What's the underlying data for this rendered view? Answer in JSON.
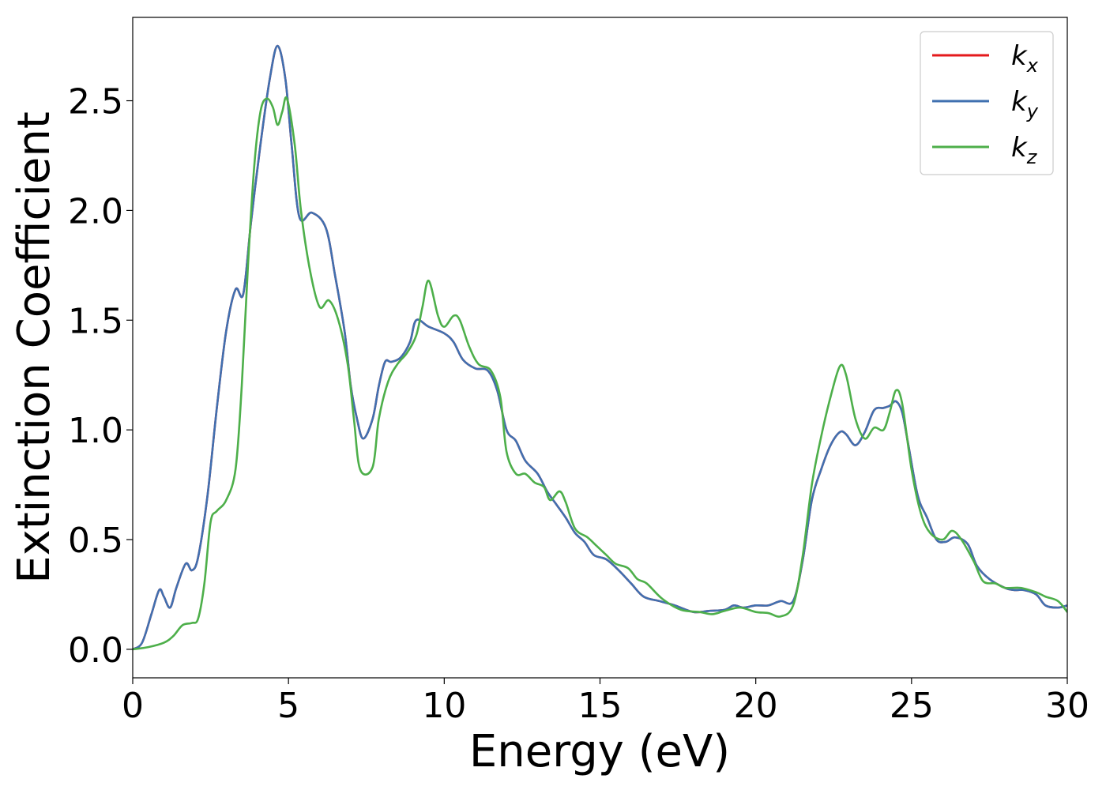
{
  "chart_data": {
    "type": "line",
    "title": "",
    "xlabel": "Energy (eV)",
    "ylabel": "Extinction Coefficient",
    "xlim": [
      0,
      30
    ],
    "ylim": [
      -0.13,
      2.88
    ],
    "xticks": [
      0,
      5,
      10,
      15,
      20,
      25,
      30
    ],
    "xtick_labels": [
      "0",
      "5",
      "10",
      "15",
      "20",
      "25",
      "30"
    ],
    "yticks": [
      0.0,
      0.5,
      1.0,
      1.5,
      2.0,
      2.5
    ],
    "ytick_labels": [
      "0.0",
      "0.5",
      "1.0",
      "1.5",
      "2.0",
      "2.5"
    ],
    "grid": false,
    "legend_position": "top-right",
    "series": [
      {
        "name": "k",
        "sub": "x",
        "color": "#e41a1c",
        "points": [
          [
            0,
            0
          ],
          [
            0.3,
            0.03
          ],
          [
            0.6,
            0.16
          ],
          [
            0.85,
            0.27
          ],
          [
            1.0,
            0.24
          ],
          [
            1.2,
            0.19
          ],
          [
            1.4,
            0.28
          ],
          [
            1.7,
            0.39
          ],
          [
            1.9,
            0.36
          ],
          [
            2.1,
            0.42
          ],
          [
            2.4,
            0.7
          ],
          [
            2.7,
            1.1
          ],
          [
            3.0,
            1.45
          ],
          [
            3.3,
            1.64
          ],
          [
            3.55,
            1.62
          ],
          [
            3.8,
            1.95
          ],
          [
            4.1,
            2.3
          ],
          [
            4.4,
            2.6
          ],
          [
            4.65,
            2.75
          ],
          [
            4.9,
            2.6
          ],
          [
            5.1,
            2.3
          ],
          [
            5.35,
            1.97
          ],
          [
            5.75,
            1.99
          ],
          [
            6.2,
            1.92
          ],
          [
            6.5,
            1.7
          ],
          [
            6.8,
            1.45
          ],
          [
            7.0,
            1.2
          ],
          [
            7.2,
            1.05
          ],
          [
            7.4,
            0.96
          ],
          [
            7.7,
            1.05
          ],
          [
            7.9,
            1.2
          ],
          [
            8.1,
            1.31
          ],
          [
            8.3,
            1.31
          ],
          [
            8.6,
            1.33
          ],
          [
            8.9,
            1.4
          ],
          [
            9.1,
            1.5
          ],
          [
            9.5,
            1.47
          ],
          [
            10.0,
            1.44
          ],
          [
            10.3,
            1.4
          ],
          [
            10.6,
            1.32
          ],
          [
            11.0,
            1.28
          ],
          [
            11.4,
            1.27
          ],
          [
            11.7,
            1.18
          ],
          [
            12.0,
            1.0
          ],
          [
            12.3,
            0.95
          ],
          [
            12.6,
            0.86
          ],
          [
            13.0,
            0.8
          ],
          [
            13.3,
            0.72
          ],
          [
            13.6,
            0.66
          ],
          [
            13.9,
            0.6
          ],
          [
            14.2,
            0.53
          ],
          [
            14.5,
            0.49
          ],
          [
            14.8,
            0.43
          ],
          [
            15.2,
            0.41
          ],
          [
            15.6,
            0.36
          ],
          [
            16.0,
            0.3
          ],
          [
            16.4,
            0.24
          ],
          [
            16.9,
            0.22
          ],
          [
            17.4,
            0.2
          ],
          [
            18.0,
            0.17
          ],
          [
            18.5,
            0.175
          ],
          [
            19.0,
            0.18
          ],
          [
            19.3,
            0.2
          ],
          [
            19.6,
            0.19
          ],
          [
            20.0,
            0.2
          ],
          [
            20.4,
            0.2
          ],
          [
            20.8,
            0.22
          ],
          [
            21.2,
            0.22
          ],
          [
            21.5,
            0.4
          ],
          [
            21.8,
            0.68
          ],
          [
            22.1,
            0.82
          ],
          [
            22.4,
            0.93
          ],
          [
            22.7,
            0.99
          ],
          [
            22.9,
            0.98
          ],
          [
            23.2,
            0.93
          ],
          [
            23.5,
            0.99
          ],
          [
            23.8,
            1.09
          ],
          [
            24.1,
            1.1
          ],
          [
            24.3,
            1.11
          ],
          [
            24.5,
            1.13
          ],
          [
            24.7,
            1.08
          ],
          [
            24.9,
            0.93
          ],
          [
            25.2,
            0.7
          ],
          [
            25.5,
            0.6
          ],
          [
            25.8,
            0.5
          ],
          [
            26.1,
            0.49
          ],
          [
            26.4,
            0.51
          ],
          [
            26.8,
            0.48
          ],
          [
            27.1,
            0.38
          ],
          [
            27.5,
            0.32
          ],
          [
            28.0,
            0.28
          ],
          [
            28.3,
            0.27
          ],
          [
            28.6,
            0.27
          ],
          [
            29.0,
            0.25
          ],
          [
            29.3,
            0.2
          ],
          [
            29.7,
            0.19
          ],
          [
            30,
            0.2
          ]
        ]
      },
      {
        "name": "k",
        "sub": "y",
        "color": "#4070b0",
        "points": [
          [
            0,
            0
          ],
          [
            0.3,
            0.03
          ],
          [
            0.6,
            0.16
          ],
          [
            0.85,
            0.27
          ],
          [
            1.0,
            0.24
          ],
          [
            1.2,
            0.19
          ],
          [
            1.4,
            0.28
          ],
          [
            1.7,
            0.39
          ],
          [
            1.9,
            0.36
          ],
          [
            2.1,
            0.42
          ],
          [
            2.4,
            0.7
          ],
          [
            2.7,
            1.1
          ],
          [
            3.0,
            1.45
          ],
          [
            3.3,
            1.64
          ],
          [
            3.55,
            1.62
          ],
          [
            3.8,
            1.95
          ],
          [
            4.1,
            2.3
          ],
          [
            4.4,
            2.6
          ],
          [
            4.65,
            2.75
          ],
          [
            4.9,
            2.6
          ],
          [
            5.1,
            2.3
          ],
          [
            5.35,
            1.97
          ],
          [
            5.75,
            1.99
          ],
          [
            6.2,
            1.92
          ],
          [
            6.5,
            1.7
          ],
          [
            6.8,
            1.45
          ],
          [
            7.0,
            1.2
          ],
          [
            7.2,
            1.05
          ],
          [
            7.4,
            0.96
          ],
          [
            7.7,
            1.05
          ],
          [
            7.9,
            1.2
          ],
          [
            8.1,
            1.31
          ],
          [
            8.3,
            1.31
          ],
          [
            8.6,
            1.33
          ],
          [
            8.9,
            1.4
          ],
          [
            9.1,
            1.5
          ],
          [
            9.5,
            1.47
          ],
          [
            10.0,
            1.44
          ],
          [
            10.3,
            1.4
          ],
          [
            10.6,
            1.32
          ],
          [
            11.0,
            1.28
          ],
          [
            11.4,
            1.27
          ],
          [
            11.7,
            1.18
          ],
          [
            12.0,
            1.0
          ],
          [
            12.3,
            0.95
          ],
          [
            12.6,
            0.86
          ],
          [
            13.0,
            0.8
          ],
          [
            13.3,
            0.72
          ],
          [
            13.6,
            0.66
          ],
          [
            13.9,
            0.6
          ],
          [
            14.2,
            0.53
          ],
          [
            14.5,
            0.49
          ],
          [
            14.8,
            0.43
          ],
          [
            15.2,
            0.41
          ],
          [
            15.6,
            0.36
          ],
          [
            16.0,
            0.3
          ],
          [
            16.4,
            0.24
          ],
          [
            16.9,
            0.22
          ],
          [
            17.4,
            0.2
          ],
          [
            18.0,
            0.17
          ],
          [
            18.5,
            0.175
          ],
          [
            19.0,
            0.18
          ],
          [
            19.3,
            0.2
          ],
          [
            19.6,
            0.19
          ],
          [
            20.0,
            0.2
          ],
          [
            20.4,
            0.2
          ],
          [
            20.8,
            0.22
          ],
          [
            21.2,
            0.22
          ],
          [
            21.5,
            0.4
          ],
          [
            21.8,
            0.68
          ],
          [
            22.1,
            0.82
          ],
          [
            22.4,
            0.93
          ],
          [
            22.7,
            0.99
          ],
          [
            22.9,
            0.98
          ],
          [
            23.2,
            0.93
          ],
          [
            23.5,
            0.99
          ],
          [
            23.8,
            1.09
          ],
          [
            24.1,
            1.1
          ],
          [
            24.3,
            1.11
          ],
          [
            24.5,
            1.13
          ],
          [
            24.7,
            1.08
          ],
          [
            24.9,
            0.93
          ],
          [
            25.2,
            0.7
          ],
          [
            25.5,
            0.6
          ],
          [
            25.8,
            0.5
          ],
          [
            26.1,
            0.49
          ],
          [
            26.4,
            0.51
          ],
          [
            26.8,
            0.48
          ],
          [
            27.1,
            0.38
          ],
          [
            27.5,
            0.32
          ],
          [
            28.0,
            0.28
          ],
          [
            28.3,
            0.27
          ],
          [
            28.6,
            0.27
          ],
          [
            29.0,
            0.25
          ],
          [
            29.3,
            0.2
          ],
          [
            29.7,
            0.19
          ],
          [
            30,
            0.2
          ]
        ]
      },
      {
        "name": "k",
        "sub": "z",
        "color": "#4daf4a",
        "points": [
          [
            0,
            0
          ],
          [
            0.5,
            0.01
          ],
          [
            1.0,
            0.03
          ],
          [
            1.3,
            0.06
          ],
          [
            1.6,
            0.11
          ],
          [
            1.9,
            0.12
          ],
          [
            2.1,
            0.14
          ],
          [
            2.3,
            0.3
          ],
          [
            2.5,
            0.58
          ],
          [
            2.7,
            0.63
          ],
          [
            3.0,
            0.68
          ],
          [
            3.3,
            0.82
          ],
          [
            3.5,
            1.2
          ],
          [
            3.7,
            1.75
          ],
          [
            3.9,
            2.2
          ],
          [
            4.1,
            2.45
          ],
          [
            4.3,
            2.51
          ],
          [
            4.5,
            2.47
          ],
          [
            4.65,
            2.39
          ],
          [
            4.8,
            2.45
          ],
          [
            4.95,
            2.51
          ],
          [
            5.2,
            2.3
          ],
          [
            5.4,
            2.0
          ],
          [
            5.7,
            1.72
          ],
          [
            6.0,
            1.56
          ],
          [
            6.3,
            1.59
          ],
          [
            6.6,
            1.5
          ],
          [
            6.9,
            1.3
          ],
          [
            7.1,
            1.05
          ],
          [
            7.3,
            0.82
          ],
          [
            7.7,
            0.83
          ],
          [
            7.9,
            1.05
          ],
          [
            8.2,
            1.22
          ],
          [
            8.5,
            1.3
          ],
          [
            8.8,
            1.35
          ],
          [
            9.1,
            1.43
          ],
          [
            9.3,
            1.56
          ],
          [
            9.5,
            1.68
          ],
          [
            9.8,
            1.52
          ],
          [
            10.0,
            1.47
          ],
          [
            10.3,
            1.52
          ],
          [
            10.5,
            1.5
          ],
          [
            10.8,
            1.38
          ],
          [
            11.1,
            1.3
          ],
          [
            11.5,
            1.27
          ],
          [
            11.8,
            1.15
          ],
          [
            12.0,
            0.9
          ],
          [
            12.3,
            0.8
          ],
          [
            12.6,
            0.8
          ],
          [
            12.9,
            0.76
          ],
          [
            13.2,
            0.74
          ],
          [
            13.4,
            0.68
          ],
          [
            13.7,
            0.72
          ],
          [
            13.9,
            0.67
          ],
          [
            14.2,
            0.55
          ],
          [
            14.6,
            0.51
          ],
          [
            14.9,
            0.47
          ],
          [
            15.2,
            0.43
          ],
          [
            15.5,
            0.39
          ],
          [
            15.9,
            0.37
          ],
          [
            16.2,
            0.32
          ],
          [
            16.5,
            0.3
          ],
          [
            17.0,
            0.23
          ],
          [
            17.6,
            0.18
          ],
          [
            18.2,
            0.17
          ],
          [
            18.6,
            0.16
          ],
          [
            19.0,
            0.175
          ],
          [
            19.5,
            0.19
          ],
          [
            20.0,
            0.17
          ],
          [
            20.4,
            0.165
          ],
          [
            20.8,
            0.15
          ],
          [
            21.2,
            0.2
          ],
          [
            21.5,
            0.42
          ],
          [
            21.8,
            0.75
          ],
          [
            22.1,
            0.97
          ],
          [
            22.4,
            1.15
          ],
          [
            22.7,
            1.29
          ],
          [
            22.9,
            1.25
          ],
          [
            23.2,
            1.05
          ],
          [
            23.5,
            0.96
          ],
          [
            23.8,
            1.01
          ],
          [
            24.1,
            1.0
          ],
          [
            24.3,
            1.08
          ],
          [
            24.5,
            1.18
          ],
          [
            24.7,
            1.12
          ],
          [
            25.0,
            0.82
          ],
          [
            25.3,
            0.62
          ],
          [
            25.6,
            0.53
          ],
          [
            26.0,
            0.5
          ],
          [
            26.3,
            0.54
          ],
          [
            26.6,
            0.5
          ],
          [
            27.0,
            0.4
          ],
          [
            27.3,
            0.31
          ],
          [
            27.7,
            0.3
          ],
          [
            28.0,
            0.28
          ],
          [
            28.5,
            0.28
          ],
          [
            29.0,
            0.26
          ],
          [
            29.3,
            0.24
          ],
          [
            29.7,
            0.22
          ],
          [
            30,
            0.17
          ]
        ]
      }
    ]
  }
}
